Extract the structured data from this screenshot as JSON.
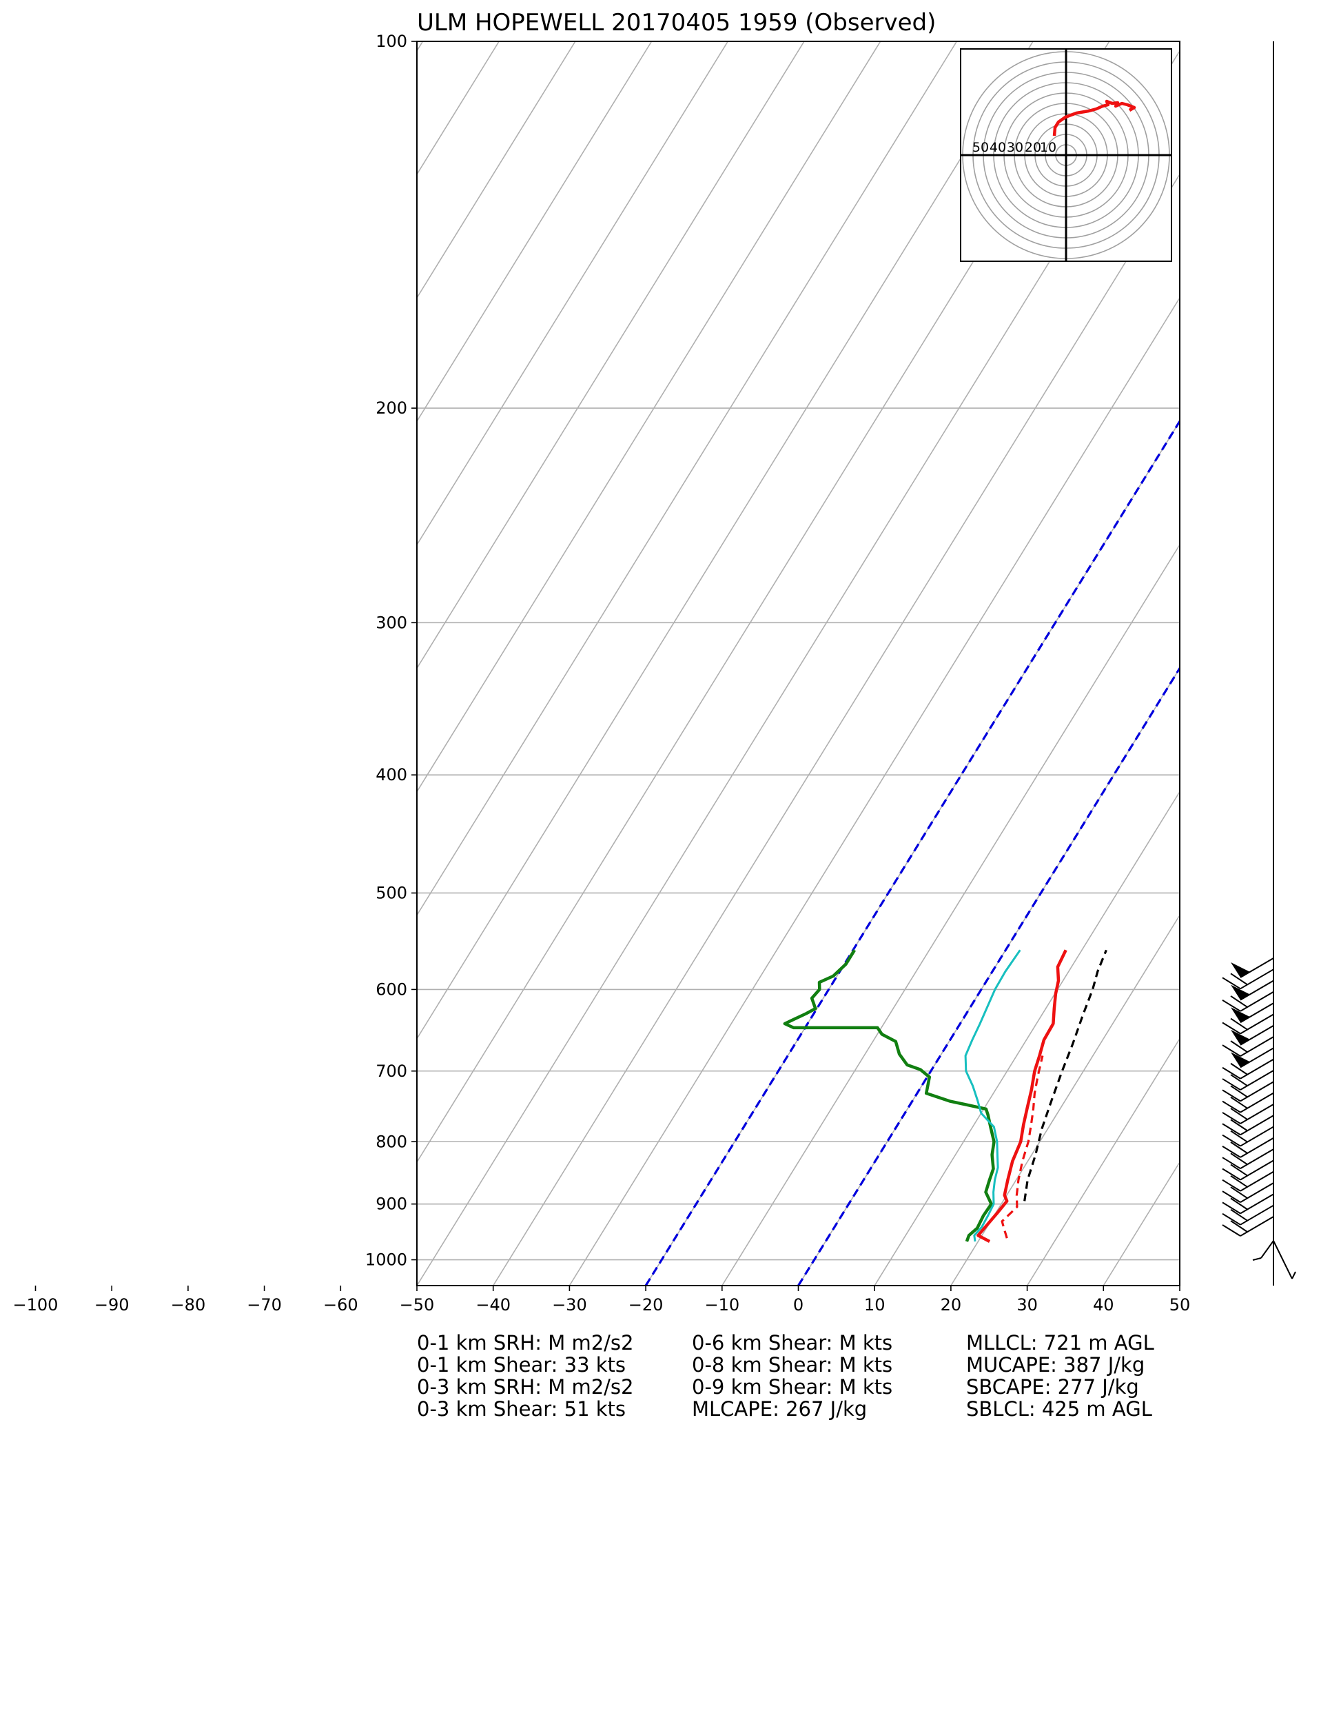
{
  "title": "ULM HOPEWELL 20170405 1959   (Observed)",
  "chart_data": {
    "type": "skew-t",
    "title": "ULM HOPEWELL 20170405 1959   (Observed)",
    "pressure_ticks": [
      "100",
      "200",
      "300",
      "400",
      "500",
      "600",
      "700",
      "800",
      "900",
      "1000"
    ],
    "temperature_ticks": [
      "−100",
      "−90",
      "−80",
      "−70",
      "−60",
      "−50",
      "−40",
      "−30",
      "−20",
      "−10",
      "0",
      "10",
      "20",
      "30",
      "40",
      "50"
    ],
    "xlim": [
      -50,
      50
    ],
    "ylim_hpa": [
      1050,
      100
    ],
    "grid": true,
    "colors": {
      "temperature": "#ee1111",
      "dewpoint": "#117f11",
      "wetbulb": "#17bfbf",
      "virtual_temperature": "#ee1111",
      "parcel": "#000000",
      "isotherm_0_-20": "#0000dd",
      "skewed_isotherms": "#b0b0b0"
    },
    "series": [
      {
        "key": "temperature",
        "points": [
          [
            21.5,
            966
          ],
          [
            19.5,
            955
          ],
          [
            19.8,
            938
          ],
          [
            20.2,
            915
          ],
          [
            20.5,
            895
          ],
          [
            19.7,
            885
          ],
          [
            18.9,
            860
          ],
          [
            18.0,
            830
          ],
          [
            17.5,
            800
          ],
          [
            16.5,
            775
          ],
          [
            15.6,
            750
          ],
          [
            14.7,
            725
          ],
          [
            13.6,
            700
          ],
          [
            13.0,
            680
          ],
          [
            12.3,
            660
          ],
          [
            12.2,
            640
          ],
          [
            11.1,
            622
          ],
          [
            10.1,
            605
          ],
          [
            9.4,
            590
          ],
          [
            8.2,
            575
          ],
          [
            7.9,
            557
          ]
        ]
      },
      {
        "key": "virtual_temperature",
        "points": [
          [
            23.5,
            960
          ],
          [
            22.5,
            945
          ],
          [
            21.5,
            930
          ],
          [
            22.3,
            905
          ],
          [
            21.3,
            885
          ],
          [
            20.3,
            860
          ],
          [
            19.3,
            830
          ],
          [
            18.5,
            800
          ],
          [
            17.5,
            775
          ],
          [
            16.5,
            752
          ],
          [
            15.4,
            730
          ],
          [
            14.4,
            706
          ],
          [
            13.4,
            680
          ]
        ]
      },
      {
        "key": "dewpoint",
        "points": [
          [
            18.5,
            966
          ],
          [
            18.3,
            955
          ],
          [
            18.8,
            942
          ],
          [
            18.6,
            920
          ],
          [
            18.7,
            900
          ],
          [
            17.0,
            880
          ],
          [
            16.5,
            860
          ],
          [
            16.1,
            842
          ],
          [
            14.8,
            820
          ],
          [
            14.0,
            800
          ],
          [
            12.5,
            780
          ],
          [
            11.0,
            760
          ],
          [
            10.3,
            752
          ],
          [
            4.9,
            741
          ],
          [
            1.2,
            730
          ],
          [
            0.3,
            708
          ],
          [
            -1.5,
            698
          ],
          [
            -3.6,
            692
          ],
          [
            -5.5,
            678
          ],
          [
            -7.0,
            662
          ],
          [
            -9.4,
            653
          ],
          [
            -10.5,
            645
          ],
          [
            -21.5,
            645
          ],
          [
            -23.0,
            640
          ],
          [
            -21.0,
            628
          ],
          [
            -20.2,
            622
          ],
          [
            -21.5,
            610
          ],
          [
            -21.2,
            600
          ],
          [
            -21.8,
            592
          ],
          [
            -20.5,
            585
          ],
          [
            -19.8,
            572
          ],
          [
            -19.8,
            557
          ]
        ]
      },
      {
        "key": "wetbulb",
        "points": [
          [
            19.6,
            966
          ],
          [
            19.0,
            955
          ],
          [
            19.3,
            940
          ],
          [
            19.2,
            920
          ],
          [
            19.0,
            900
          ],
          [
            18.0,
            880
          ],
          [
            17.2,
            860
          ],
          [
            16.6,
            840
          ],
          [
            15.5,
            820
          ],
          [
            14.4,
            800
          ],
          [
            12.8,
            778
          ],
          [
            10.0,
            758
          ],
          [
            8.5,
            740
          ],
          [
            6.7,
            720
          ],
          [
            4.6,
            700
          ],
          [
            3.3,
            680
          ],
          [
            2.9,
            660
          ],
          [
            2.6,
            640
          ],
          [
            2.2,
            620
          ],
          [
            1.8,
            600
          ],
          [
            1.7,
            580
          ],
          [
            1.9,
            557
          ]
        ]
      },
      {
        "key": "parcel",
        "points": [
          [
            22.8,
            895
          ],
          [
            21.5,
            860
          ],
          [
            20.5,
            820
          ],
          [
            19.2,
            780
          ],
          [
            18.2,
            740
          ],
          [
            17.2,
            700
          ],
          [
            16.4,
            665
          ],
          [
            15.4,
            630
          ],
          [
            14.6,
            600
          ],
          [
            13.8,
            580
          ],
          [
            13.2,
            557
          ]
        ]
      }
    ],
    "hodograph": {
      "ring_labels": [
        "50",
        "40",
        "30",
        "20",
        "10"
      ],
      "trace_color": "#ee1111"
    },
    "wind_barbs": {
      "color": "#000000",
      "count": 24
    }
  },
  "stats": {
    "col1": [
      "0-1 km SRH: M m2/s2",
      "0-1 km Shear: 33 kts",
      "0-3 km SRH: M m2/s2",
      "0-3 km Shear: 51 kts"
    ],
    "col2": [
      "0-6 km Shear: M kts",
      "0-8 km Shear: M kts",
      "0-9 km Shear: M kts",
      "MLCAPE: 267 J/kg"
    ],
    "col3": [
      "MLLCL: 721 m AGL",
      "MUCAPE: 387 J/kg",
      "SBCAPE: 277 J/kg",
      "SBLCL: 425 m AGL"
    ]
  }
}
